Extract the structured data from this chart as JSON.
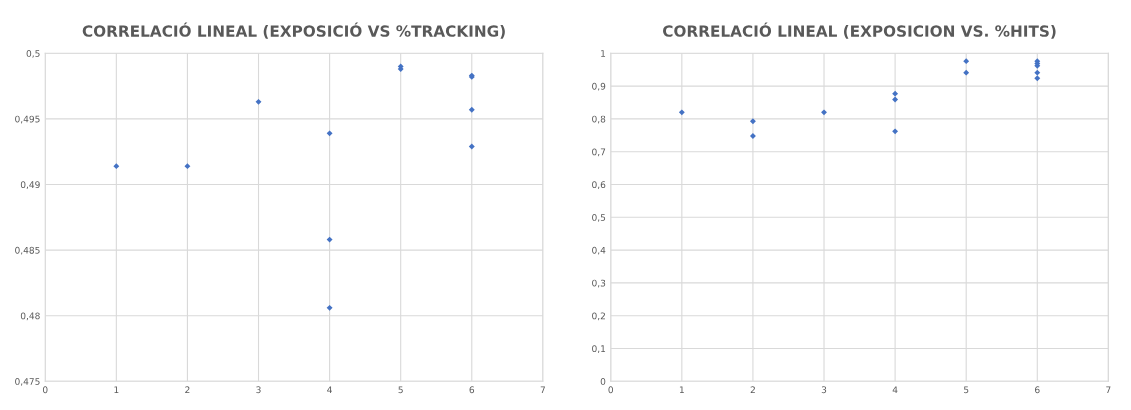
{
  "chart_data": [
    {
      "type": "scatter",
      "title": "CORRELACIÓ LINEAL (EXPOSICIÓ VS %TRACKING)",
      "marker": "diamond",
      "grid": true,
      "series": [
        {
          "color": "#4472c4",
          "x": [
            1,
            2,
            3,
            4,
            4,
            4,
            5,
            5,
            6,
            6,
            6,
            6
          ],
          "values": [
            0.4914,
            0.4914,
            0.4963,
            0.4939,
            0.4858,
            0.4806,
            0.499,
            0.4988,
            0.4983,
            0.4982,
            0.4957,
            0.4929
          ]
        }
      ],
      "xlim": [
        0,
        7
      ],
      "xticks": [
        0,
        1,
        2,
        3,
        4,
        5,
        6,
        7
      ],
      "ylim": [
        0.475,
        0.5
      ],
      "yticks": [
        {
          "value": 0.475,
          "label": "0,475"
        },
        {
          "value": 0.48,
          "label": "0,48"
        },
        {
          "value": 0.485,
          "label": "0,485"
        },
        {
          "value": 0.49,
          "label": "0,49"
        },
        {
          "value": 0.495,
          "label": "0,495"
        },
        {
          "value": 0.5,
          "label": "0,5"
        }
      ]
    },
    {
      "type": "scatter",
      "title": "CORRELACIÓ LINEAL (EXPOSICION VS. %HITS)",
      "marker": "diamond",
      "grid": true,
      "series": [
        {
          "color": "#4472c4",
          "x": [
            1,
            2,
            2,
            3,
            4,
            4,
            4,
            5,
            5,
            6,
            6,
            6,
            6,
            6
          ],
          "values": [
            0.82,
            0.793,
            0.748,
            0.82,
            0.877,
            0.859,
            0.762,
            0.976,
            0.941,
            0.976,
            0.969,
            0.962,
            0.941,
            0.924
          ]
        }
      ],
      "xlim": [
        0,
        7
      ],
      "xticks": [
        0,
        1,
        2,
        3,
        4,
        5,
        6,
        7
      ],
      "ylim": [
        0,
        1
      ],
      "yticks": [
        0,
        {
          "value": 0.1,
          "label": "0,1"
        },
        {
          "value": 0.2,
          "label": "0,2"
        },
        {
          "value": 0.3,
          "label": "0,3"
        },
        {
          "value": 0.4,
          "label": "0,4"
        },
        {
          "value": 0.5,
          "label": "0,5"
        },
        {
          "value": 0.6,
          "label": "0,6"
        },
        {
          "value": 0.7,
          "label": "0,7"
        },
        {
          "value": 0.8,
          "label": "0,8"
        },
        {
          "value": 0.9,
          "label": "0,9"
        },
        1
      ]
    }
  ]
}
